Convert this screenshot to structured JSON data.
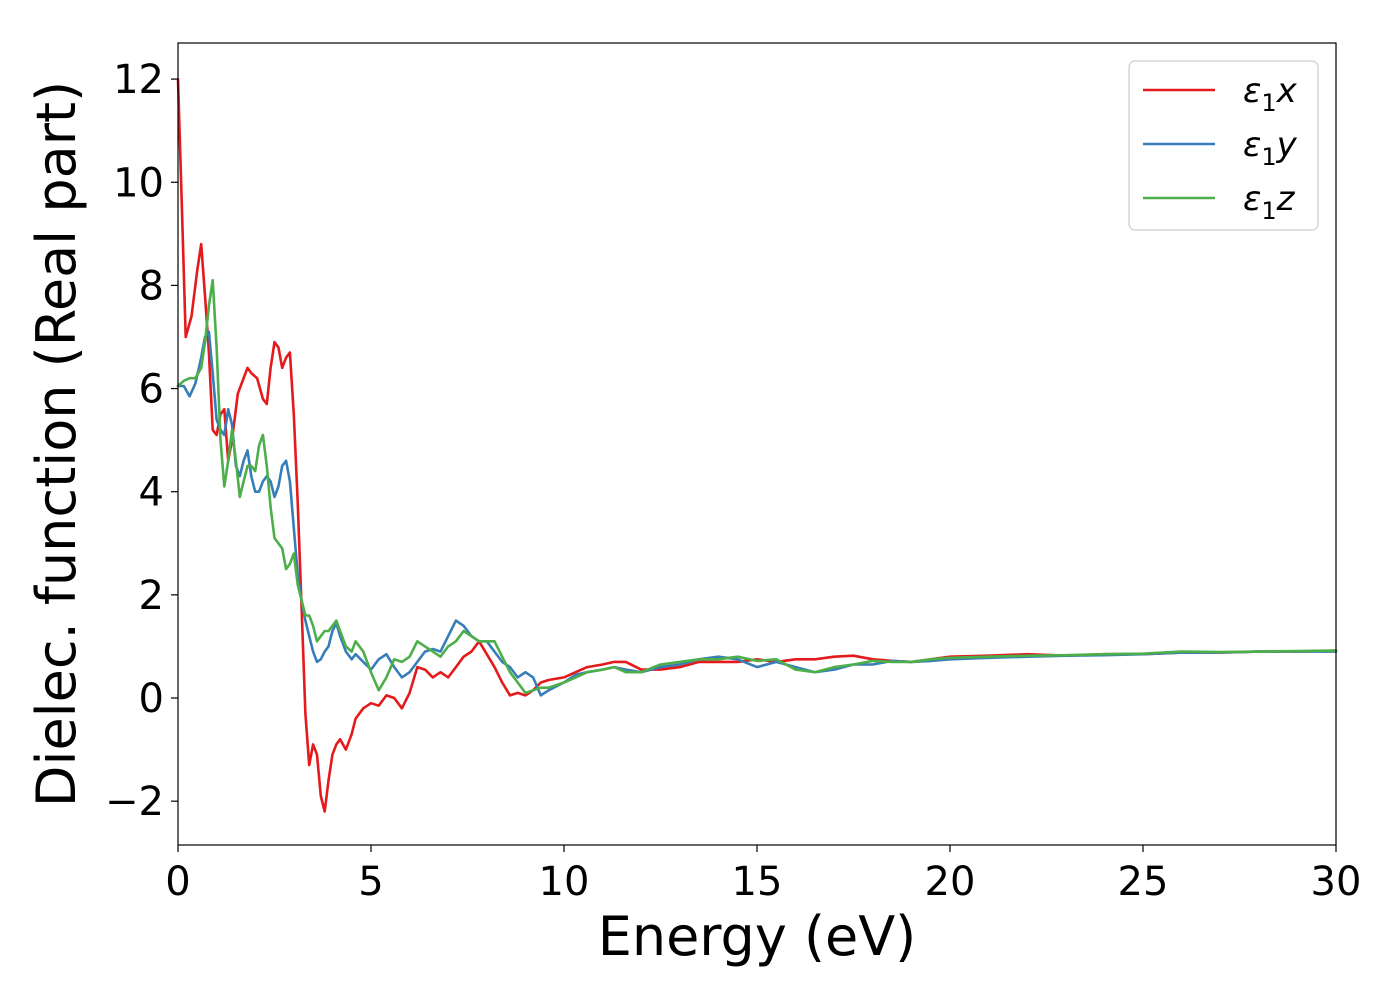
{
  "chart_data": {
    "type": "line",
    "title": "",
    "xlabel": "Energy (eV)",
    "ylabel": "Dielec. function (Real part)",
    "xlim": [
      0,
      30
    ],
    "ylim": [
      -2.85,
      12.7
    ],
    "xticks": [
      0,
      5,
      10,
      15,
      20,
      25,
      30
    ],
    "xtick_labels": [
      "0",
      "5",
      "10",
      "15",
      "20",
      "25",
      "30"
    ],
    "yticks": [
      -2,
      0,
      2,
      4,
      6,
      8,
      10,
      12
    ],
    "ytick_labels": [
      "−2",
      "0",
      "2",
      "4",
      "6",
      "8",
      "10",
      "12"
    ],
    "grid": false,
    "legend_position": "top-right",
    "series": [
      {
        "name": "ε1x",
        "name_main": "ε",
        "name_sub": "1",
        "name_tail": "x",
        "color": "#e41a1c",
        "points": [
          [
            0,
            12.0
          ],
          [
            0.1,
            9.5
          ],
          [
            0.2,
            7.0
          ],
          [
            0.35,
            7.4
          ],
          [
            0.5,
            8.3
          ],
          [
            0.6,
            8.8
          ],
          [
            0.7,
            7.8
          ],
          [
            0.8,
            6.7
          ],
          [
            0.9,
            5.2
          ],
          [
            1.0,
            5.1
          ],
          [
            1.1,
            5.5
          ],
          [
            1.2,
            5.6
          ],
          [
            1.3,
            4.6
          ],
          [
            1.4,
            5.0
          ],
          [
            1.55,
            5.9
          ],
          [
            1.7,
            6.2
          ],
          [
            1.8,
            6.4
          ],
          [
            1.9,
            6.3
          ],
          [
            2.05,
            6.2
          ],
          [
            2.2,
            5.8
          ],
          [
            2.3,
            5.7
          ],
          [
            2.4,
            6.4
          ],
          [
            2.5,
            6.9
          ],
          [
            2.6,
            6.8
          ],
          [
            2.7,
            6.4
          ],
          [
            2.8,
            6.6
          ],
          [
            2.9,
            6.7
          ],
          [
            3.0,
            5.5
          ],
          [
            3.1,
            3.8
          ],
          [
            3.2,
            1.8
          ],
          [
            3.3,
            -0.3
          ],
          [
            3.4,
            -1.3
          ],
          [
            3.5,
            -0.9
          ],
          [
            3.6,
            -1.1
          ],
          [
            3.7,
            -1.9
          ],
          [
            3.8,
            -2.2
          ],
          [
            3.9,
            -1.6
          ],
          [
            4.0,
            -1.1
          ],
          [
            4.1,
            -0.9
          ],
          [
            4.2,
            -0.8
          ],
          [
            4.35,
            -1.0
          ],
          [
            4.5,
            -0.7
          ],
          [
            4.6,
            -0.4
          ],
          [
            4.8,
            -0.2
          ],
          [
            5.0,
            -0.1
          ],
          [
            5.2,
            -0.15
          ],
          [
            5.4,
            0.05
          ],
          [
            5.6,
            0.0
          ],
          [
            5.8,
            -0.2
          ],
          [
            6.0,
            0.1
          ],
          [
            6.2,
            0.6
          ],
          [
            6.4,
            0.55
          ],
          [
            6.6,
            0.4
          ],
          [
            6.8,
            0.5
          ],
          [
            7.0,
            0.4
          ],
          [
            7.2,
            0.6
          ],
          [
            7.4,
            0.8
          ],
          [
            7.6,
            0.9
          ],
          [
            7.8,
            1.1
          ],
          [
            8.0,
            0.85
          ],
          [
            8.2,
            0.6
          ],
          [
            8.4,
            0.3
          ],
          [
            8.6,
            0.05
          ],
          [
            8.8,
            0.1
          ],
          [
            9.0,
            0.05
          ],
          [
            9.2,
            0.15
          ],
          [
            9.4,
            0.3
          ],
          [
            9.6,
            0.35
          ],
          [
            10.0,
            0.4
          ],
          [
            10.3,
            0.5
          ],
          [
            10.6,
            0.6
          ],
          [
            11.0,
            0.65
          ],
          [
            11.3,
            0.7
          ],
          [
            11.6,
            0.7
          ],
          [
            12.0,
            0.55
          ],
          [
            12.5,
            0.55
          ],
          [
            13.0,
            0.6
          ],
          [
            13.5,
            0.7
          ],
          [
            14.0,
            0.7
          ],
          [
            14.5,
            0.7
          ],
          [
            15.0,
            0.75
          ],
          [
            15.5,
            0.7
          ],
          [
            16.0,
            0.75
          ],
          [
            16.5,
            0.75
          ],
          [
            17.0,
            0.8
          ],
          [
            17.5,
            0.82
          ],
          [
            18.0,
            0.75
          ],
          [
            18.5,
            0.72
          ],
          [
            19.0,
            0.7
          ],
          [
            19.5,
            0.75
          ],
          [
            20.0,
            0.8
          ],
          [
            21.0,
            0.82
          ],
          [
            22.0,
            0.85
          ],
          [
            23.0,
            0.82
          ],
          [
            24.0,
            0.85
          ],
          [
            25.0,
            0.85
          ],
          [
            26.0,
            0.88
          ],
          [
            27.0,
            0.88
          ],
          [
            28.0,
            0.9
          ],
          [
            29.0,
            0.9
          ],
          [
            30.0,
            0.92
          ]
        ]
      },
      {
        "name": "ε1y",
        "name_main": "ε",
        "name_sub": "1",
        "name_tail": "y",
        "color": "#377eb8",
        "points": [
          [
            0,
            6.05
          ],
          [
            0.15,
            6.05
          ],
          [
            0.3,
            5.85
          ],
          [
            0.45,
            6.1
          ],
          [
            0.6,
            6.6
          ],
          [
            0.7,
            7.0
          ],
          [
            0.8,
            7.1
          ],
          [
            0.9,
            6.3
          ],
          [
            1.0,
            5.4
          ],
          [
            1.1,
            5.2
          ],
          [
            1.2,
            5.1
          ],
          [
            1.3,
            5.6
          ],
          [
            1.4,
            5.3
          ],
          [
            1.5,
            4.5
          ],
          [
            1.6,
            4.3
          ],
          [
            1.7,
            4.6
          ],
          [
            1.8,
            4.8
          ],
          [
            1.9,
            4.3
          ],
          [
            2.0,
            4.0
          ],
          [
            2.1,
            4.0
          ],
          [
            2.2,
            4.2
          ],
          [
            2.3,
            4.3
          ],
          [
            2.4,
            4.2
          ],
          [
            2.5,
            3.9
          ],
          [
            2.6,
            4.1
          ],
          [
            2.7,
            4.5
          ],
          [
            2.8,
            4.6
          ],
          [
            2.9,
            4.2
          ],
          [
            3.0,
            3.3
          ],
          [
            3.1,
            2.4
          ],
          [
            3.2,
            1.9
          ],
          [
            3.3,
            1.5
          ],
          [
            3.4,
            1.2
          ],
          [
            3.5,
            0.9
          ],
          [
            3.6,
            0.7
          ],
          [
            3.7,
            0.75
          ],
          [
            3.8,
            0.9
          ],
          [
            3.9,
            1.0
          ],
          [
            4.0,
            1.3
          ],
          [
            4.1,
            1.45
          ],
          [
            4.2,
            1.2
          ],
          [
            4.35,
            0.9
          ],
          [
            4.5,
            0.75
          ],
          [
            4.6,
            0.85
          ],
          [
            4.8,
            0.7
          ],
          [
            5.0,
            0.55
          ],
          [
            5.2,
            0.75
          ],
          [
            5.4,
            0.85
          ],
          [
            5.6,
            0.6
          ],
          [
            5.8,
            0.4
          ],
          [
            6.0,
            0.5
          ],
          [
            6.2,
            0.7
          ],
          [
            6.4,
            0.9
          ],
          [
            6.6,
            0.95
          ],
          [
            6.8,
            0.9
          ],
          [
            7.0,
            1.2
          ],
          [
            7.2,
            1.5
          ],
          [
            7.4,
            1.4
          ],
          [
            7.6,
            1.2
          ],
          [
            7.8,
            1.1
          ],
          [
            8.0,
            1.1
          ],
          [
            8.2,
            0.9
          ],
          [
            8.4,
            0.7
          ],
          [
            8.6,
            0.6
          ],
          [
            8.8,
            0.4
          ],
          [
            9.0,
            0.5
          ],
          [
            9.2,
            0.4
          ],
          [
            9.4,
            0.05
          ],
          [
            9.6,
            0.15
          ],
          [
            10.0,
            0.3
          ],
          [
            10.3,
            0.45
          ],
          [
            10.6,
            0.5
          ],
          [
            11.0,
            0.55
          ],
          [
            11.3,
            0.6
          ],
          [
            11.6,
            0.55
          ],
          [
            12.0,
            0.5
          ],
          [
            12.5,
            0.6
          ],
          [
            13.0,
            0.65
          ],
          [
            13.5,
            0.75
          ],
          [
            14.0,
            0.8
          ],
          [
            14.5,
            0.75
          ],
          [
            15.0,
            0.6
          ],
          [
            15.5,
            0.7
          ],
          [
            16.0,
            0.6
          ],
          [
            16.5,
            0.5
          ],
          [
            17.0,
            0.55
          ],
          [
            17.5,
            0.65
          ],
          [
            18.0,
            0.65
          ],
          [
            18.5,
            0.72
          ],
          [
            19.0,
            0.7
          ],
          [
            19.5,
            0.72
          ],
          [
            20.0,
            0.75
          ],
          [
            21.0,
            0.78
          ],
          [
            22.0,
            0.8
          ],
          [
            23.0,
            0.82
          ],
          [
            24.0,
            0.83
          ],
          [
            25.0,
            0.85
          ],
          [
            26.0,
            0.88
          ],
          [
            27.0,
            0.88
          ],
          [
            28.0,
            0.9
          ],
          [
            29.0,
            0.9
          ],
          [
            30.0,
            0.9
          ]
        ]
      },
      {
        "name": "ε1z",
        "name_main": "ε",
        "name_sub": "1",
        "name_tail": "z",
        "color": "#4daf4a",
        "points": [
          [
            0,
            6.05
          ],
          [
            0.15,
            6.15
          ],
          [
            0.3,
            6.2
          ],
          [
            0.45,
            6.2
          ],
          [
            0.6,
            6.4
          ],
          [
            0.7,
            6.9
          ],
          [
            0.8,
            7.6
          ],
          [
            0.9,
            8.1
          ],
          [
            1.0,
            6.8
          ],
          [
            1.1,
            5.0
          ],
          [
            1.2,
            4.1
          ],
          [
            1.3,
            4.6
          ],
          [
            1.4,
            5.2
          ],
          [
            1.5,
            4.6
          ],
          [
            1.6,
            3.9
          ],
          [
            1.7,
            4.2
          ],
          [
            1.8,
            4.5
          ],
          [
            1.9,
            4.5
          ],
          [
            2.0,
            4.4
          ],
          [
            2.1,
            4.9
          ],
          [
            2.2,
            5.1
          ],
          [
            2.3,
            4.5
          ],
          [
            2.4,
            3.7
          ],
          [
            2.5,
            3.1
          ],
          [
            2.6,
            3.0
          ],
          [
            2.7,
            2.9
          ],
          [
            2.8,
            2.5
          ],
          [
            2.9,
            2.6
          ],
          [
            3.0,
            2.8
          ],
          [
            3.1,
            2.2
          ],
          [
            3.2,
            1.9
          ],
          [
            3.3,
            1.6
          ],
          [
            3.4,
            1.6
          ],
          [
            3.5,
            1.4
          ],
          [
            3.6,
            1.1
          ],
          [
            3.7,
            1.2
          ],
          [
            3.8,
            1.3
          ],
          [
            3.9,
            1.3
          ],
          [
            4.0,
            1.4
          ],
          [
            4.1,
            1.5
          ],
          [
            4.2,
            1.3
          ],
          [
            4.35,
            1.0
          ],
          [
            4.5,
            0.9
          ],
          [
            4.6,
            1.1
          ],
          [
            4.8,
            0.9
          ],
          [
            5.0,
            0.5
          ],
          [
            5.2,
            0.15
          ],
          [
            5.4,
            0.4
          ],
          [
            5.6,
            0.75
          ],
          [
            5.8,
            0.7
          ],
          [
            6.0,
            0.8
          ],
          [
            6.2,
            1.1
          ],
          [
            6.4,
            1.0
          ],
          [
            6.6,
            0.9
          ],
          [
            6.8,
            0.8
          ],
          [
            7.0,
            1.0
          ],
          [
            7.2,
            1.1
          ],
          [
            7.4,
            1.3
          ],
          [
            7.6,
            1.2
          ],
          [
            7.8,
            1.1
          ],
          [
            8.0,
            1.1
          ],
          [
            8.2,
            1.1
          ],
          [
            8.4,
            0.8
          ],
          [
            8.6,
            0.5
          ],
          [
            8.8,
            0.3
          ],
          [
            9.0,
            0.1
          ],
          [
            9.2,
            0.15
          ],
          [
            9.4,
            0.2
          ],
          [
            9.6,
            0.2
          ],
          [
            10.0,
            0.3
          ],
          [
            10.3,
            0.4
          ],
          [
            10.6,
            0.5
          ],
          [
            11.0,
            0.55
          ],
          [
            11.3,
            0.6
          ],
          [
            11.6,
            0.5
          ],
          [
            12.0,
            0.5
          ],
          [
            12.5,
            0.65
          ],
          [
            13.0,
            0.7
          ],
          [
            13.5,
            0.75
          ],
          [
            14.0,
            0.75
          ],
          [
            14.5,
            0.8
          ],
          [
            15.0,
            0.72
          ],
          [
            15.5,
            0.75
          ],
          [
            16.0,
            0.55
          ],
          [
            16.5,
            0.5
          ],
          [
            17.0,
            0.6
          ],
          [
            17.5,
            0.65
          ],
          [
            18.0,
            0.72
          ],
          [
            18.5,
            0.7
          ],
          [
            19.0,
            0.7
          ],
          [
            19.5,
            0.75
          ],
          [
            20.0,
            0.78
          ],
          [
            21.0,
            0.8
          ],
          [
            22.0,
            0.82
          ],
          [
            23.0,
            0.83
          ],
          [
            24.0,
            0.85
          ],
          [
            25.0,
            0.86
          ],
          [
            26.0,
            0.9
          ],
          [
            27.0,
            0.89
          ],
          [
            28.0,
            0.9
          ],
          [
            29.0,
            0.91
          ],
          [
            30.0,
            0.92
          ]
        ]
      }
    ]
  }
}
